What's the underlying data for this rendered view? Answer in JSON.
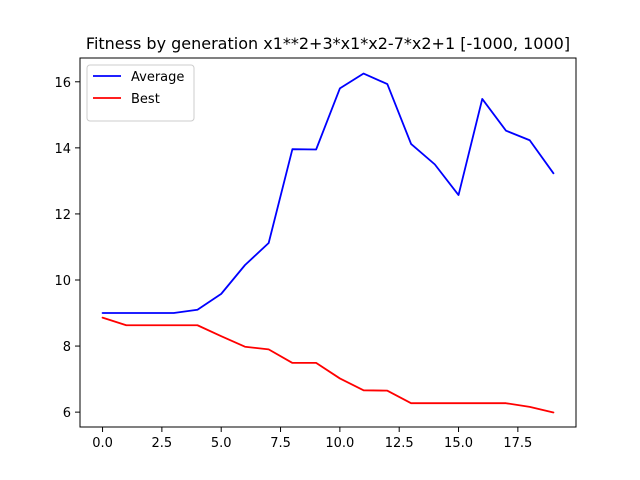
{
  "chart_data": {
    "type": "line",
    "title": "Fitness by generation x1**2+3*x1*x2-7*x2+1 [-1000, 1000]",
    "xlabel": "",
    "ylabel": "",
    "xlim": [
      -0.95,
      19.95
    ],
    "ylim": [
      5.55,
      16.72
    ],
    "x_ticks": [
      0.0,
      2.5,
      5.0,
      7.5,
      10.0,
      12.5,
      15.0,
      17.5
    ],
    "x_tick_labels": [
      "0.0",
      "2.5",
      "5.0",
      "7.5",
      "10.0",
      "12.5",
      "15.0",
      "17.5"
    ],
    "y_ticks": [
      6,
      8,
      10,
      12,
      14,
      16
    ],
    "y_tick_labels": [
      "6",
      "8",
      "10",
      "12",
      "14",
      "16"
    ],
    "grid": false,
    "legend_position": "top-left",
    "x": [
      0,
      1,
      2,
      3,
      4,
      5,
      6,
      7,
      8,
      9,
      10,
      11,
      12,
      13,
      14,
      15,
      16,
      17,
      18,
      19
    ],
    "series": [
      {
        "name": "Average",
        "color": "#0000ff",
        "values": [
          9.0,
          9.0,
          9.0,
          9.0,
          9.1,
          9.58,
          10.45,
          11.12,
          13.96,
          13.95,
          15.8,
          16.25,
          15.93,
          14.12,
          13.5,
          12.57,
          15.48,
          14.52,
          14.23,
          13.23
        ]
      },
      {
        "name": "Best",
        "color": "#ff0000",
        "values": [
          8.86,
          8.63,
          8.63,
          8.63,
          8.63,
          8.3,
          7.98,
          7.9,
          7.49,
          7.49,
          7.02,
          6.66,
          6.65,
          6.27,
          6.27,
          6.27,
          6.27,
          6.27,
          6.16,
          5.99
        ]
      }
    ]
  }
}
